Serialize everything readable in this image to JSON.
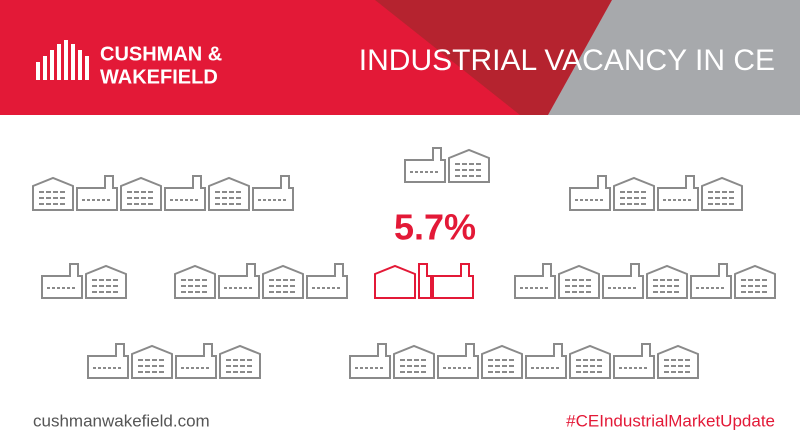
{
  "header": {
    "logo_line1": "CUSHMAN &",
    "logo_line2": "WAKEFIELD",
    "title": "INDUSTRIAL VACANCY IN CE"
  },
  "highlight": {
    "vacancy": "5.7%"
  },
  "footer": {
    "website": "cushmanwakefield.com",
    "hashtag": "#CEIndustrialMarketUpdate"
  }
}
